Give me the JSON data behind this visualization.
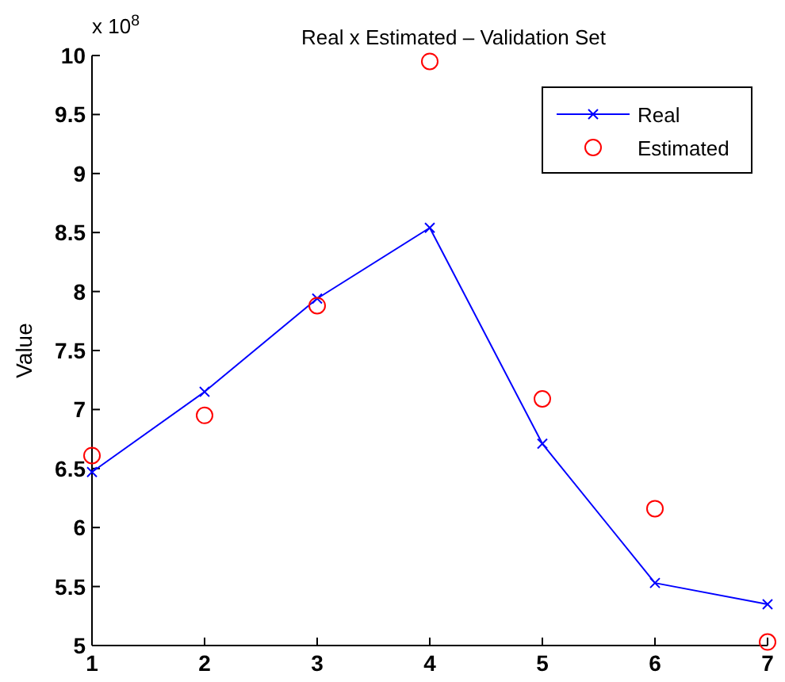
{
  "chart_data": {
    "type": "line",
    "title": "Real x Estimated  – Validation Set",
    "ylabel": "Value",
    "annotations": [
      "x 10$^{8}$"
    ],
    "x": [
      1,
      2,
      3,
      4,
      5,
      6,
      7
    ],
    "xlim": [
      1,
      7
    ],
    "xticks": [
      1,
      2,
      3,
      4,
      5,
      6,
      7
    ],
    "ylim": [
      5,
      10
    ],
    "yticks": [
      5,
      5.5,
      6,
      6.5,
      7,
      7.5,
      8,
      8.5,
      9,
      9.5,
      10
    ],
    "grid": false,
    "legend": "top right",
    "series": [
      {
        "name": "Real",
        "color": "#0000ff",
        "marker": "cross",
        "line_style": "solid",
        "values": [
          6.47,
          7.15,
          7.94,
          8.54,
          6.71,
          5.53,
          5.35
        ]
      },
      {
        "name": "Estimated",
        "type": "scatter",
        "color": "#ff0000",
        "marker": "circle",
        "values": [
          6.61,
          6.95,
          7.88,
          9.95,
          7.09,
          6.16,
          5.03
        ]
      }
    ]
  }
}
